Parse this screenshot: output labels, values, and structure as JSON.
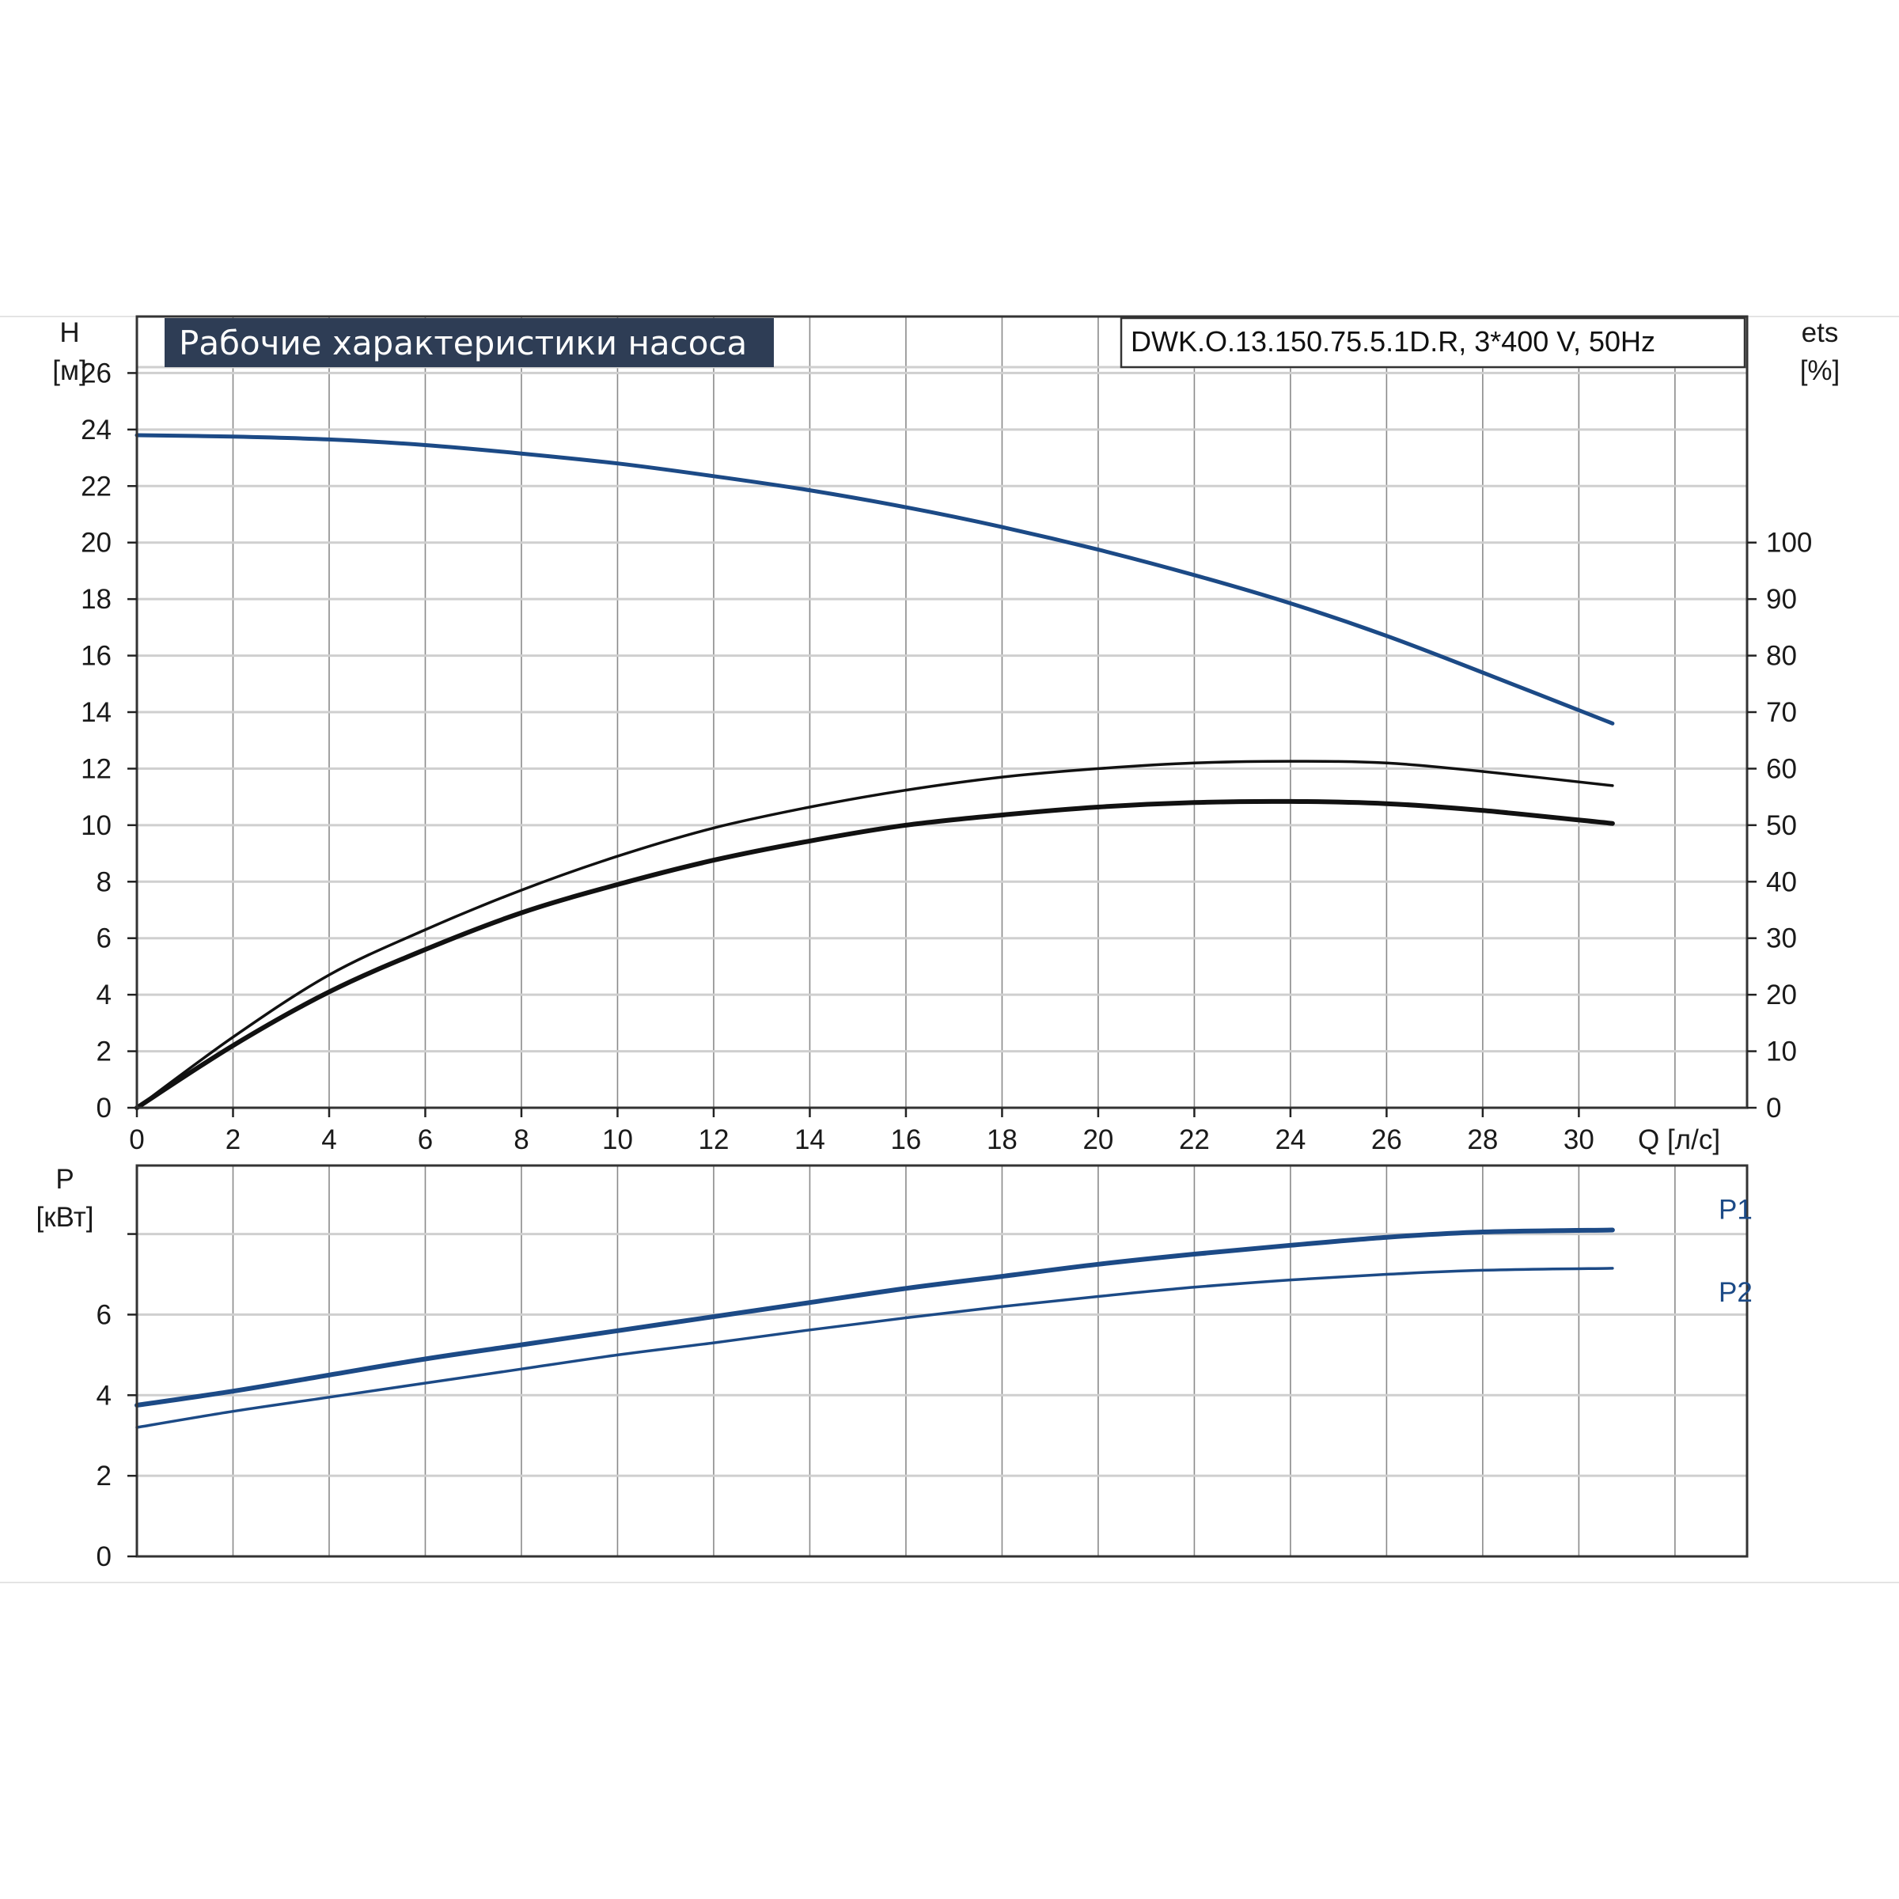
{
  "chart_data": [
    {
      "type": "line",
      "title": "Рабочие характеристики насоса",
      "model": "DWK.O.13.150.75.5.1D.R, 3*400 V, 50Hz",
      "xlabel": "Q [л/с]",
      "xlim": [
        0,
        33.5
      ],
      "xticks": [
        0,
        2,
        4,
        6,
        8,
        10,
        12,
        14,
        16,
        18,
        20,
        22,
        24,
        26,
        28,
        30
      ],
      "ylabel_left": [
        "H",
        "[м]"
      ],
      "ylim_left": [
        0,
        28
      ],
      "yticks_left": [
        0,
        2,
        4,
        6,
        8,
        10,
        12,
        14,
        16,
        18,
        20,
        22,
        24,
        26
      ],
      "ylabel_right": [
        "ets",
        "[%]"
      ],
      "ylim_right": [
        0,
        140
      ],
      "yticks_right": [
        0,
        10,
        20,
        30,
        40,
        50,
        60,
        70,
        80,
        90,
        100
      ],
      "grid": true,
      "series": [
        {
          "axis": "left",
          "color": "#1c4a86",
          "width": 5,
          "x": [
            0,
            2,
            4,
            6,
            8,
            10,
            12,
            14,
            16,
            18,
            20,
            22,
            24,
            26,
            28,
            30.7
          ],
          "y": [
            23.8,
            23.75,
            23.65,
            23.45,
            23.15,
            22.8,
            22.35,
            21.85,
            21.25,
            20.55,
            19.75,
            18.85,
            17.85,
            16.7,
            15.4,
            13.6
          ]
        },
        {
          "axis": "right",
          "color": "#111111",
          "width": 3.5,
          "x": [
            0,
            2,
            4,
            6,
            8,
            10,
            12,
            14,
            16,
            18,
            20,
            22,
            24,
            26,
            28,
            30.7
          ],
          "y": [
            0,
            12.5,
            23.5,
            31.5,
            38.5,
            44.5,
            49.5,
            53.2,
            56.2,
            58.5,
            60,
            61,
            61.3,
            61,
            59.5,
            57
          ]
        },
        {
          "axis": "right",
          "color": "#111111",
          "width": 6,
          "x": [
            0,
            2,
            4,
            6,
            8,
            10,
            12,
            14,
            16,
            18,
            20,
            22,
            24,
            26,
            28,
            30.7
          ],
          "y": [
            0,
            11,
            20.5,
            28,
            34.5,
            39.5,
            43.8,
            47.2,
            50,
            51.8,
            53.2,
            54,
            54.2,
            53.8,
            52.6,
            50.3
          ]
        }
      ]
    },
    {
      "type": "line",
      "xlim": [
        0,
        33.5
      ],
      "ylabel": [
        "P",
        "[кВт]"
      ],
      "ylim": [
        0,
        9.7
      ],
      "yticks": [
        0,
        2,
        4,
        6
      ],
      "grid": true,
      "series": [
        {
          "name": "P1",
          "color": "#1c4a86",
          "width": 6,
          "x": [
            0,
            2,
            4,
            6,
            8,
            10,
            12,
            14,
            16,
            18,
            20,
            22,
            24,
            26,
            28,
            30.7
          ],
          "y": [
            3.75,
            4.1,
            4.5,
            4.9,
            5.25,
            5.6,
            5.95,
            6.3,
            6.65,
            6.95,
            7.25,
            7.5,
            7.72,
            7.92,
            8.05,
            8.1
          ]
        },
        {
          "name": "P2",
          "color": "#1c4a86",
          "width": 3.5,
          "x": [
            0,
            2,
            4,
            6,
            8,
            10,
            12,
            14,
            16,
            18,
            20,
            22,
            24,
            26,
            28,
            30.7
          ],
          "y": [
            3.2,
            3.6,
            3.95,
            4.3,
            4.65,
            5.0,
            5.3,
            5.62,
            5.92,
            6.2,
            6.45,
            6.68,
            6.86,
            7.0,
            7.1,
            7.15
          ]
        }
      ]
    }
  ]
}
